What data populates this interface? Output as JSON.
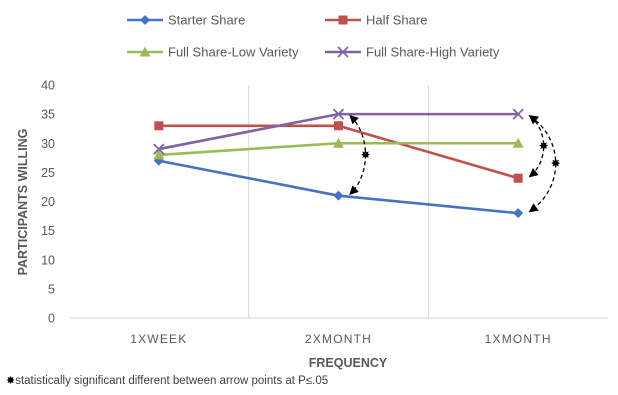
{
  "chart_data": {
    "type": "line",
    "title": "",
    "xlabel": "FREQUENCY",
    "ylabel": "PARTICIPANTS WILLING",
    "categories": [
      "1XWEEK",
      "2XMONTH",
      "1XMONTH"
    ],
    "ylim": [
      0,
      40
    ],
    "yticks": [
      0,
      5,
      10,
      15,
      20,
      25,
      30,
      35,
      40
    ],
    "grid": "vertical",
    "legend_position": "top",
    "series": [
      {
        "name": "Starter Share",
        "values": [
          27,
          21,
          18
        ],
        "color": "#4472C4",
        "marker": "diamond"
      },
      {
        "name": "Half Share",
        "values": [
          33,
          33,
          24
        ],
        "color": "#C0504D",
        "marker": "square"
      },
      {
        "name": "Full Share-Low Variety",
        "values": [
          28,
          30,
          30
        ],
        "color": "#9BBB59",
        "marker": "triangle"
      },
      {
        "name": "Full Share-High Variety",
        "values": [
          29,
          35,
          35
        ],
        "color": "#8064A2",
        "marker": "x"
      }
    ],
    "annotations": [
      {
        "category": "2XMONTH",
        "from": 35,
        "to": 21
      },
      {
        "category": "1XMONTH",
        "from": 35,
        "to": 24
      },
      {
        "category": "1XMONTH",
        "from": 35,
        "to": 18
      }
    ],
    "footnote": {
      "mark": "✸",
      "text": "statistically significant different between arrow points at P≤.05"
    }
  }
}
